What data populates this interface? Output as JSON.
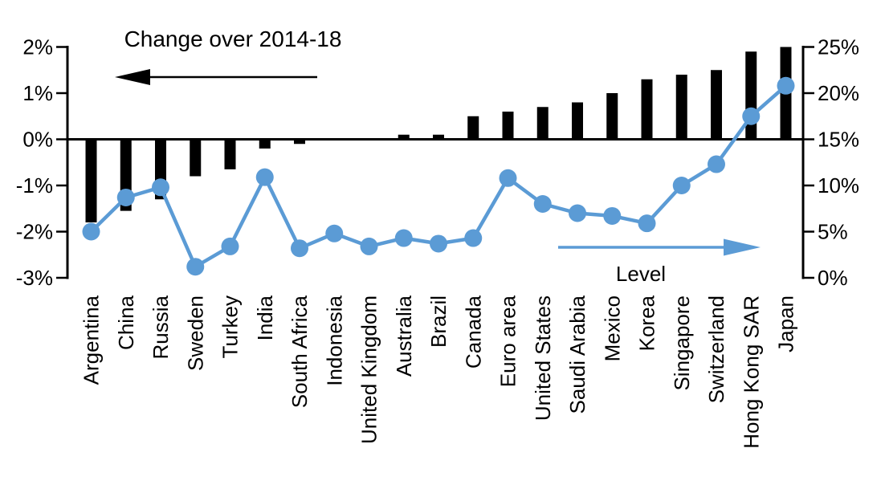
{
  "chart_data": {
    "type": "combo",
    "categories": [
      "Argentina",
      "China",
      "Russia",
      "Sweden",
      "Turkey",
      "India",
      "South Africa",
      "Indonesia",
      "United Kingdom",
      "Australia",
      "Brazil",
      "Canada",
      "Euro area",
      "United States",
      "Saudi Arabia",
      "Mexico",
      "Korea",
      "Singapore",
      "Switzerland",
      "Hong Kong SAR",
      "Japan"
    ],
    "series": [
      {
        "name": "Change over 2014-18",
        "type": "bar",
        "axis": "left",
        "color": "#000000",
        "values": [
          -1.8,
          -1.55,
          -1.3,
          -0.8,
          -0.65,
          -0.2,
          -0.1,
          0,
          0,
          0.1,
          0.1,
          0.5,
          0.6,
          0.7,
          0.8,
          1.0,
          1.3,
          1.4,
          1.5,
          1.9,
          2.0
        ]
      },
      {
        "name": "Level",
        "type": "line",
        "axis": "right",
        "color": "#5B9BD5",
        "values": [
          5.0,
          8.7,
          9.8,
          1.2,
          3.4,
          10.9,
          3.2,
          4.8,
          3.4,
          4.3,
          3.7,
          4.3,
          10.8,
          8.0,
          7.0,
          6.7,
          5.9,
          10.0,
          12.3,
          17.5,
          20.8
        ]
      }
    ],
    "left_axis": {
      "ticks": [
        "2%",
        "1%",
        "0%",
        "-1%",
        "-2%",
        "-3%"
      ],
      "tick_values": [
        2,
        1,
        0,
        -1,
        -2,
        -3
      ],
      "min": -3,
      "max": 2
    },
    "right_axis": {
      "ticks": [
        "25%",
        "20%",
        "15%",
        "10%",
        "5%",
        "0%"
      ],
      "tick_values": [
        25,
        20,
        15,
        10,
        5,
        0
      ],
      "min": 0,
      "max": 25
    },
    "annotations": [
      {
        "id": "change",
        "text": "Change over 2014-18",
        "arrow": "left",
        "color": "#000000"
      },
      {
        "id": "level",
        "text": "Level",
        "arrow": "right",
        "color": "#5B9BD5"
      }
    ],
    "grid": false,
    "legend_position": "none",
    "background": "#FFFFFF"
  }
}
